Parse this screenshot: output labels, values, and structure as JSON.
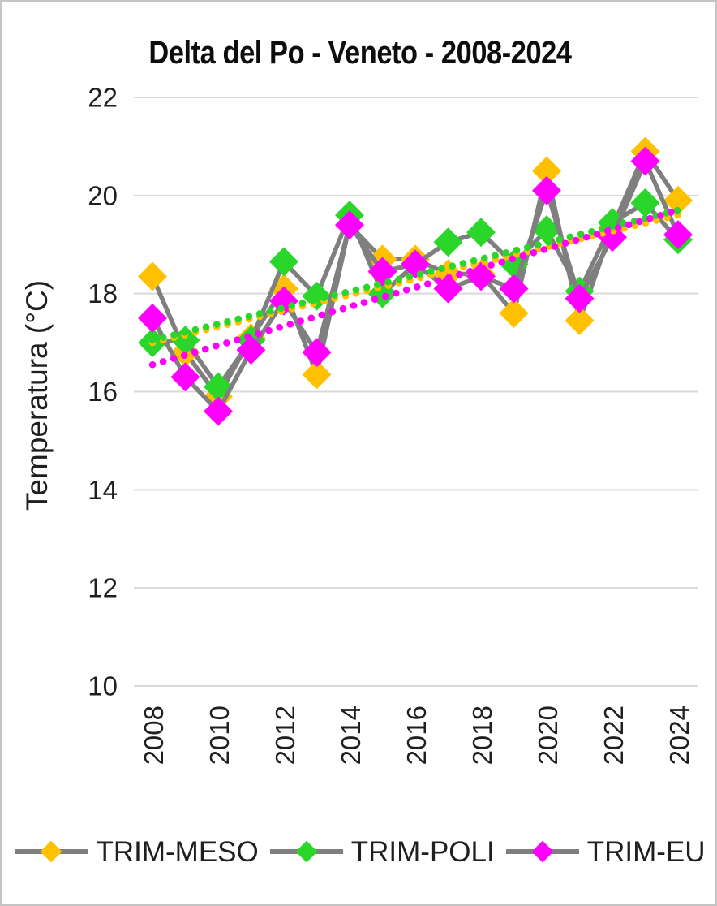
{
  "chart_data": {
    "type": "line",
    "title": "Delta del Po  - Veneto - 2008-2024",
    "ylabel": "Temperatura (°C)",
    "x": [
      2008,
      2009,
      2010,
      2011,
      2012,
      2013,
      2014,
      2015,
      2016,
      2017,
      2018,
      2019,
      2020,
      2021,
      2022,
      2023,
      2024
    ],
    "x_tick_step": 2,
    "ylim": [
      10,
      22
    ],
    "yticks": [
      22,
      20,
      18,
      16,
      14,
      12,
      10
    ],
    "grid": "horizontal",
    "legend_position": "bottom",
    "line_color": "#7F7F7F",
    "grid_color": "#D9D9D9",
    "series": [
      {
        "name": "TRIM-MESO",
        "color": "#FFC000",
        "marker": "diamond",
        "values": [
          18.35,
          16.8,
          15.9,
          17.1,
          18.1,
          16.35,
          19.4,
          18.7,
          18.7,
          18.4,
          18.4,
          17.6,
          20.5,
          17.45,
          19.35,
          20.9,
          19.9
        ]
      },
      {
        "name": "TRIM-POLI",
        "color": "#2BD62B",
        "marker": "diamond",
        "values": [
          17.0,
          17.05,
          16.1,
          17.05,
          18.65,
          17.95,
          19.6,
          18.0,
          18.6,
          19.05,
          19.25,
          18.6,
          19.3,
          18.05,
          19.45,
          19.85,
          19.1
        ]
      },
      {
        "name": "TRIM-EU",
        "color": "#FF00FF",
        "marker": "diamond",
        "values": [
          17.5,
          16.3,
          15.6,
          16.85,
          17.85,
          16.8,
          19.4,
          18.45,
          18.6,
          18.1,
          18.35,
          18.1,
          20.1,
          17.9,
          19.15,
          20.7,
          19.2
        ]
      }
    ],
    "trendlines": [
      {
        "series": "TRIM-MESO",
        "style": "dotted",
        "color": "#FFC000",
        "start": 17.0,
        "end": 19.6
      },
      {
        "series": "TRIM-POLI",
        "style": "dotted",
        "color": "#2BD62B",
        "start": 17.05,
        "end": 19.7
      },
      {
        "series": "TRIM-EU",
        "style": "dotted",
        "color": "#FF00FF",
        "start": 16.55,
        "end": 19.7
      }
    ]
  }
}
